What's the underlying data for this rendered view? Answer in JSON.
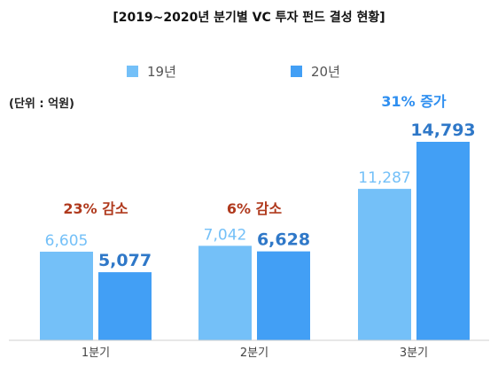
{
  "chart_data": {
    "type": "bar",
    "title": "[2019~2020년 분기별 VC 투자 펀드 결성 현황]",
    "unit_note": "(단위 : 억원)",
    "categories": [
      "1분기",
      "2분기",
      "3분기"
    ],
    "series": [
      {
        "name": "19년",
        "color": "#74c0f8",
        "values": [
          6605,
          7042,
          11287
        ],
        "labels": [
          "6,605",
          "7,042",
          "11,287"
        ]
      },
      {
        "name": "20년",
        "color": "#429ff5",
        "values": [
          5077,
          6628,
          14793
        ],
        "labels": [
          "5,077",
          "6,628",
          "14,793"
        ]
      }
    ],
    "annotations": [
      {
        "category": "1분기",
        "text": "23% 감소",
        "color": "#b03a1e"
      },
      {
        "category": "2분기",
        "text": "6% 감소",
        "color": "#b03a1e"
      },
      {
        "category": "3분기",
        "text": "31% 증가",
        "color": "#2f8ff0"
      }
    ],
    "ylim": [
      0,
      16000
    ],
    "legend_position": "top-center",
    "grid": false
  }
}
